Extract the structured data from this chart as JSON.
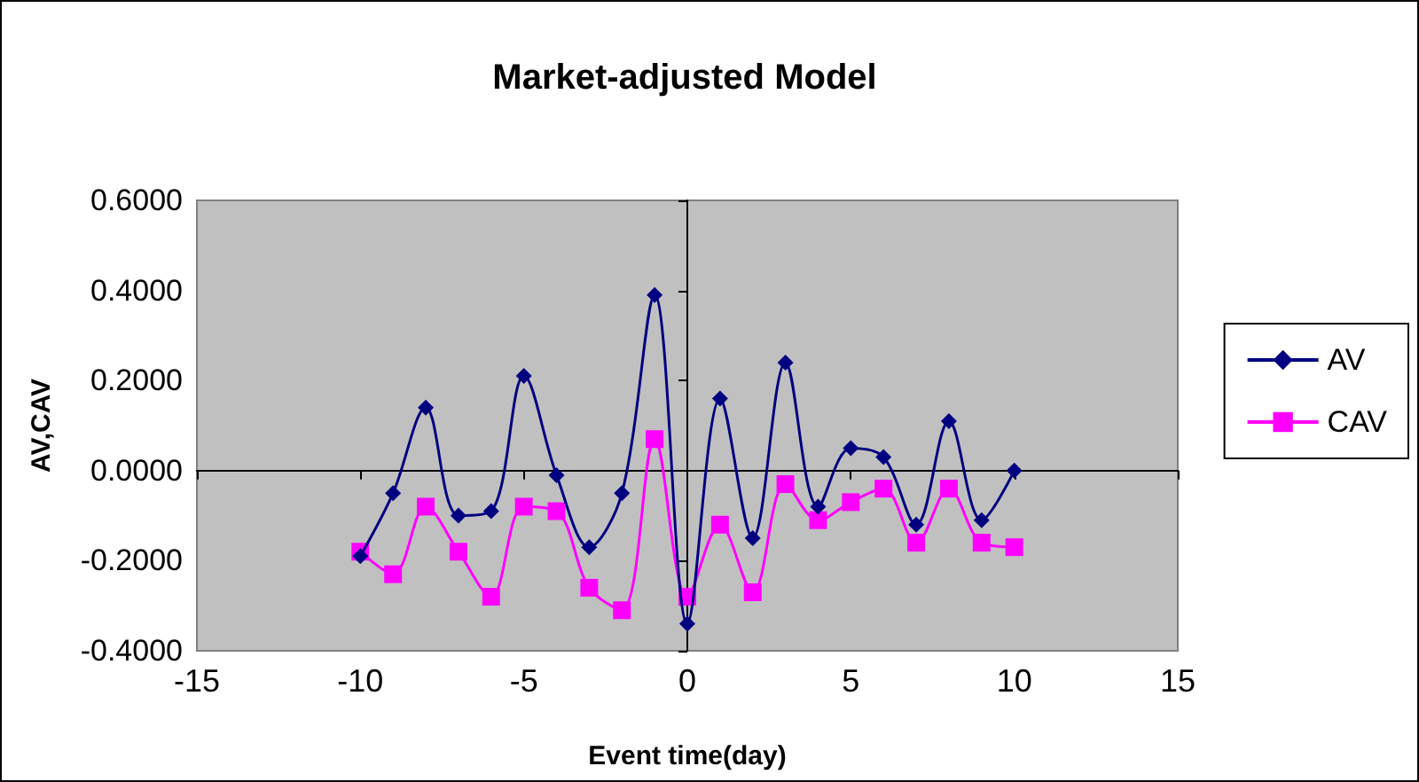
{
  "chart_data": {
    "type": "line",
    "title": "Market-adjusted Model",
    "xlabel": "Event time(day)",
    "ylabel": "AV,CAV",
    "x": [
      -10,
      -9,
      -8,
      -7,
      -6,
      -5,
      -4,
      -3,
      -2,
      -1,
      0,
      1,
      2,
      3,
      4,
      5,
      6,
      7,
      8,
      9,
      10
    ],
    "series": [
      {
        "name": "AV",
        "color": "#000080",
        "marker": "diamond",
        "values": [
          -0.19,
          -0.05,
          0.14,
          -0.1,
          -0.09,
          0.21,
          -0.01,
          -0.17,
          -0.05,
          0.39,
          -0.34,
          0.16,
          -0.15,
          0.24,
          -0.08,
          0.05,
          0.03,
          -0.12,
          0.11,
          -0.11,
          0.0
        ]
      },
      {
        "name": "CAV",
        "color": "#ff00ff",
        "marker": "square",
        "values": [
          -0.18,
          -0.23,
          -0.08,
          -0.18,
          -0.28,
          -0.08,
          -0.09,
          -0.26,
          -0.31,
          0.07,
          -0.28,
          -0.12,
          -0.27,
          -0.03,
          -0.11,
          -0.07,
          -0.04,
          -0.16,
          -0.04,
          -0.16,
          -0.17
        ]
      }
    ],
    "xlim": [
      -15,
      15
    ],
    "xticks": [
      -15,
      -10,
      -5,
      0,
      5,
      10,
      15
    ],
    "ylim": [
      -0.4,
      0.6
    ],
    "yticks": [
      {
        "value": -0.4,
        "label": "-0.4000"
      },
      {
        "value": -0.2,
        "label": "-0.2000"
      },
      {
        "value": 0,
        "label": "0.0000"
      },
      {
        "value": 0.2,
        "label": "0.2000"
      },
      {
        "value": 0.4,
        "label": "0.4000"
      },
      {
        "value": 0.6,
        "label": "0.6000"
      }
    ],
    "legend": "right"
  }
}
